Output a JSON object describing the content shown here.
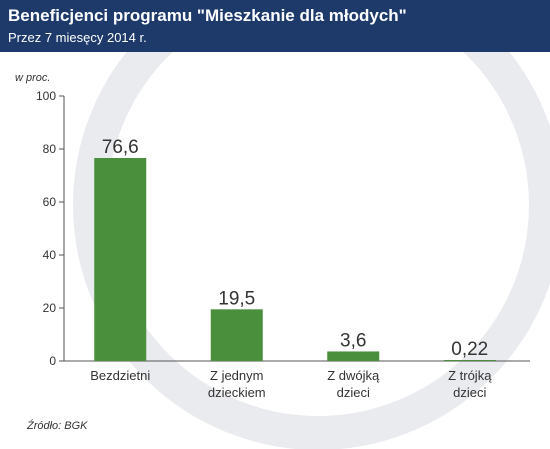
{
  "header": {
    "title": "Beneficjenci programu \"Mieszkanie dla młodych\"",
    "subtitle": "Przez 7 miesęcy 2014 r."
  },
  "source": "Źródło: BGK",
  "colors": {
    "header_bg": "#1d3a6b",
    "bar": "#4a8f3c",
    "watermark": "#e9ebef"
  },
  "chart_data": {
    "type": "bar",
    "title": "Beneficjenci programu \"Mieszkanie dla młodych\"",
    "subtitle": "Przez 7 miesęcy 2014 r.",
    "ylabel": "w proc.",
    "xlabel": "",
    "categories": [
      [
        "Bezdzietni"
      ],
      [
        "Z jednym",
        "dzieckiem"
      ],
      [
        "Z dwójką",
        "dzieci"
      ],
      [
        "Z trójką",
        "dzieci"
      ]
    ],
    "values": [
      76.6,
      19.5,
      3.6,
      0.22
    ],
    "value_labels": [
      "76,6",
      "19,5",
      "3,6",
      "0,22"
    ],
    "ylim": [
      0,
      100
    ],
    "yticks": [
      0,
      20,
      40,
      60,
      80,
      100
    ],
    "grid": false,
    "legend": "none"
  }
}
